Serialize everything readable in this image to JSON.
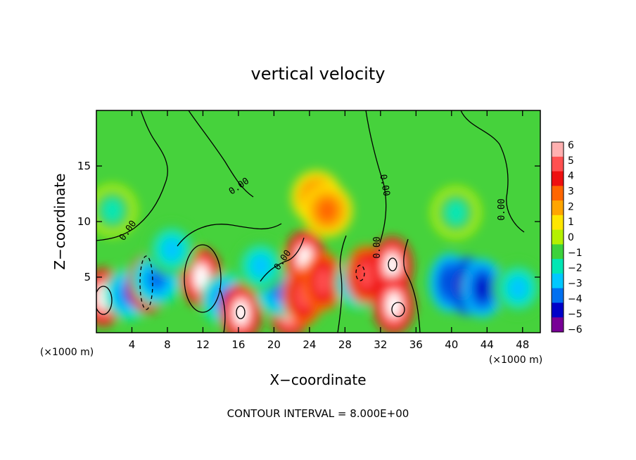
{
  "chart_data": {
    "type": "heatmap",
    "title": "vertical velocity",
    "xlabel": "X−coordinate",
    "ylabel": "Z−coordinate",
    "x_unit_left": "(×1000 m)",
    "x_unit_right": "(×1000 m)",
    "xlim": [
      0,
      50
    ],
    "ylim": [
      0,
      20
    ],
    "xticks": [
      "4",
      "8",
      "12",
      "16",
      "20",
      "24",
      "28",
      "32",
      "36",
      "40",
      "44",
      "48"
    ],
    "yticks": [
      "5",
      "10",
      "15"
    ],
    "colorbar": {
      "range": [
        -6,
        6
      ],
      "tick_labels": [
        "6",
        "5",
        "4",
        "3",
        "2",
        "1",
        "0",
        "−1",
        "−2",
        "−3",
        "−4",
        "−5",
        "−6"
      ],
      "colors": [
        "#ffb0b0",
        "#ff5050",
        "#ee1010",
        "#ff6600",
        "#ffa500",
        "#ffe600",
        "#b4f000",
        "#3cd23c",
        "#00e6b4",
        "#00c8ff",
        "#0070f0",
        "#0000c8",
        "#780096"
      ]
    },
    "contour_labels": [
      "0.00",
      "0.00",
      "0.00",
      "0.00",
      "0.00",
      "0.00",
      "0.00"
    ],
    "contour_interval_label": "CONTOUR INTERVAL = 8.000E+00",
    "features": [
      {
        "x": 0.8,
        "z": 3.2,
        "w": 6
      },
      {
        "x": 3.7,
        "z": 3.5,
        "w": -4
      },
      {
        "x": 5.8,
        "z": 4.4,
        "w": 6
      },
      {
        "x": 6.8,
        "z": 4.8,
        "w": -4
      },
      {
        "x": 11.8,
        "z": 5.0,
        "w": 6
      },
      {
        "x": 14.6,
        "z": 3.0,
        "w": -4
      },
      {
        "x": 16.3,
        "z": 1.8,
        "w": 6
      },
      {
        "x": 21.8,
        "z": 2.2,
        "w": 6
      },
      {
        "x": 20.7,
        "z": 3.8,
        "w": -4
      },
      {
        "x": 23.5,
        "z": 6.6,
        "w": 6
      },
      {
        "x": 23.3,
        "z": 3.3,
        "w": 5
      },
      {
        "x": 25.5,
        "z": 4.6,
        "w": 5
      },
      {
        "x": 24.8,
        "z": 12.2,
        "w": 3
      },
      {
        "x": 26.0,
        "z": 11.0,
        "w": 3
      },
      {
        "x": 29.7,
        "z": 4.5,
        "w": -4
      },
      {
        "x": 30.4,
        "z": 5.2,
        "w": 5
      },
      {
        "x": 33.3,
        "z": 6.0,
        "w": 6
      },
      {
        "x": 33.5,
        "z": 2.5,
        "w": 6
      },
      {
        "x": 39.8,
        "z": 4.5,
        "w": -5
      },
      {
        "x": 41.8,
        "z": 4.2,
        "w": -6
      },
      {
        "x": 43.5,
        "z": 4.0,
        "w": -5
      },
      {
        "x": 40.5,
        "z": 10.8,
        "w": -2
      },
      {
        "x": 47.5,
        "z": 4.0,
        "w": -3
      },
      {
        "x": 1.8,
        "z": 11.0,
        "w": -2
      },
      {
        "x": 8.5,
        "z": 7.5,
        "w": -3
      },
      {
        "x": 18.5,
        "z": 6.0,
        "w": -3
      }
    ]
  }
}
